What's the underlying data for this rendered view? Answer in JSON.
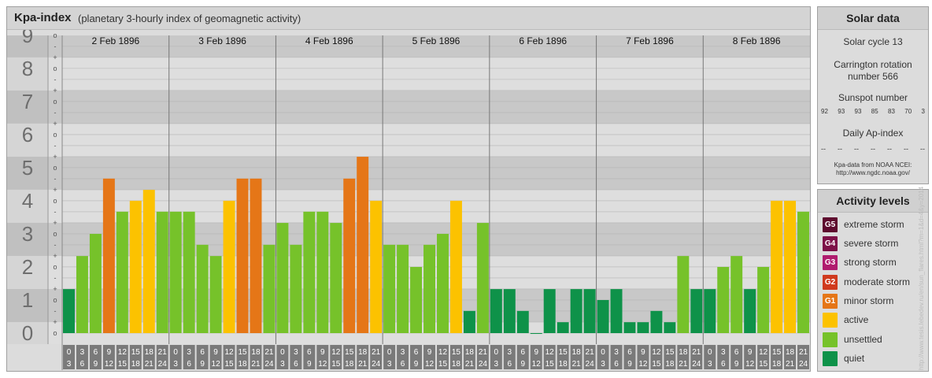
{
  "header": {
    "title": "Kpa-index",
    "subtitle": "(planetary 3-hourly index of geomagnetic activity)"
  },
  "chart_data": {
    "type": "bar",
    "title": "Kpa-index",
    "subtitle": "(planetary 3-hourly index of geomagnetic activity)",
    "ylim": [
      0,
      9
    ],
    "y_ticks": [
      "0",
      "1",
      "2",
      "3",
      "4",
      "5",
      "6",
      "7",
      "8",
      "9"
    ],
    "minor_ticks": [
      "o",
      "+",
      "-"
    ],
    "days": [
      "2 Feb 1896",
      "3 Feb 1896",
      "4 Feb 1896",
      "5 Feb 1896",
      "6 Feb 1896",
      "7 Feb 1896",
      "8 Feb 1896"
    ],
    "interval_start_labels": [
      "0",
      "3",
      "6",
      "9",
      "12",
      "15",
      "18",
      "21"
    ],
    "interval_end_labels": [
      "3",
      "6",
      "9",
      "12",
      "15",
      "18",
      "21",
      "24"
    ],
    "values": [
      [
        1.33,
        2.33,
        3.0,
        4.67,
        3.67,
        4.0,
        4.33,
        3.67
      ],
      [
        3.67,
        3.67,
        2.67,
        2.33,
        4.0,
        4.67,
        4.67,
        2.67
      ],
      [
        3.33,
        2.67,
        3.67,
        3.67,
        3.33,
        4.67,
        5.33,
        4.0
      ],
      [
        2.67,
        2.67,
        2.0,
        2.67,
        3.0,
        4.0,
        0.67,
        3.33
      ],
      [
        1.33,
        1.33,
        0.67,
        0.0,
        1.33,
        0.33,
        1.33,
        1.33
      ],
      [
        1.0,
        1.33,
        0.33,
        0.33,
        0.67,
        0.33,
        2.33,
        1.33
      ],
      [
        1.33,
        2.0,
        2.33,
        1.33,
        2.0,
        4.0,
        4.0,
        3.67
      ]
    ],
    "colors": {
      "quiet": "#0e9249",
      "unsettled": "#76c22a",
      "active": "#fcc200",
      "minor_storm": "#e57617"
    }
  },
  "solar": {
    "title": "Solar data",
    "cycle": "Solar cycle 13",
    "carrington_line1": "Carrington rotation",
    "carrington_line2": "number 566",
    "sunspot_title": "Sunspot number",
    "sunspot_values": [
      "92",
      "93",
      "93",
      "85",
      "83",
      "70",
      "3"
    ],
    "ap_title": "Daily Ap-index",
    "ap_values": [
      "--",
      "--",
      "--",
      "--",
      "--",
      "--",
      "--"
    ],
    "source_line1": "Kpa-data from NOAA NCEI:",
    "source_line2": "http://www.ngdc.noaa.gov/"
  },
  "legend": {
    "title": "Activity levels",
    "items": [
      {
        "badge": "G5",
        "label": "extreme storm",
        "color": "#5e0a2e"
      },
      {
        "badge": "G4",
        "label": "severe storm",
        "color": "#7d1147"
      },
      {
        "badge": "G3",
        "label": "strong storm",
        "color": "#b01c6e"
      },
      {
        "badge": "G2",
        "label": "moderate storm",
        "color": "#d03a1e"
      },
      {
        "badge": "G1",
        "label": "minor storm",
        "color": "#e57617"
      },
      {
        "badge": "",
        "label": "active",
        "color": "#fcc200"
      },
      {
        "badge": "",
        "label": "unsettled",
        "color": "#76c22a"
      },
      {
        "badge": "",
        "label": "quiet",
        "color": "#0e9249"
      }
    ]
  },
  "watermark": "http://www.tesis.lebedev.ru/en/sun_flares.html?m=1&d=4&y=2014"
}
